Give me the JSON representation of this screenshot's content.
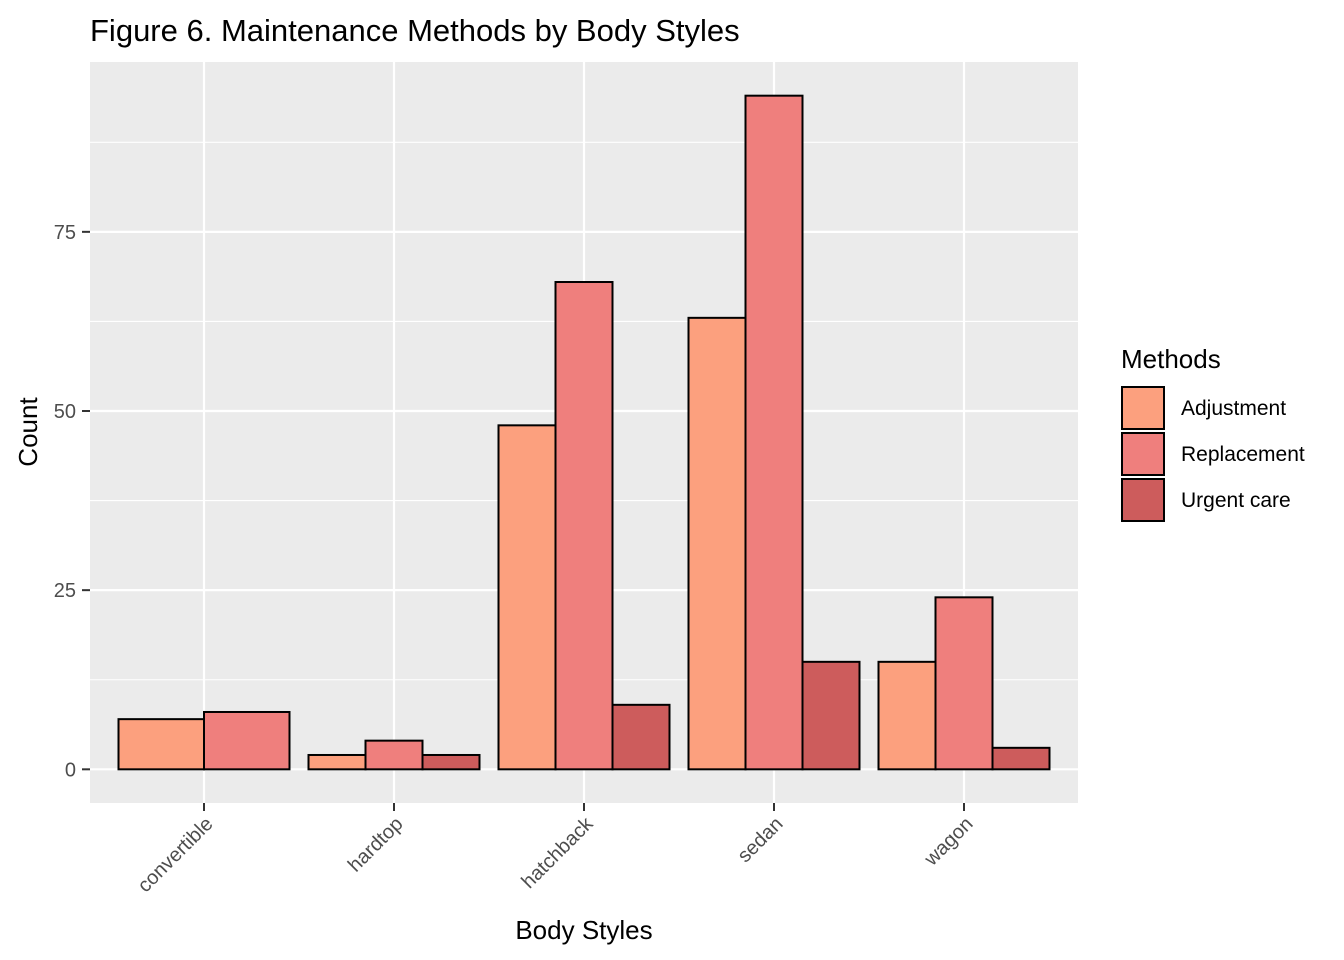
{
  "chart_data": {
    "type": "bar",
    "title": "Figure 6. Maintenance Methods by Body Styles",
    "xlabel": "Body Styles",
    "ylabel": "Count",
    "categories": [
      "convertible",
      "hardtop",
      "hatchback",
      "sedan",
      "wagon"
    ],
    "series": [
      {
        "name": "Adjustment",
        "color": "#FCA07E",
        "values": [
          7,
          2,
          48,
          63,
          15
        ]
      },
      {
        "name": "Replacement",
        "color": "#EF7F7D",
        "values": [
          8,
          4,
          68,
          94,
          24
        ]
      },
      {
        "name": "Urgent care",
        "color": "#CD5C5C",
        "values": [
          null,
          2,
          9,
          15,
          3
        ]
      }
    ],
    "yticks": [
      0,
      25,
      50,
      75
    ],
    "ylim": [
      -4.7,
      98.7
    ],
    "grid": true,
    "legend": {
      "title": "Methods",
      "position": "right"
    },
    "background": "#EBEBEB",
    "bar_outline": "#000000"
  }
}
